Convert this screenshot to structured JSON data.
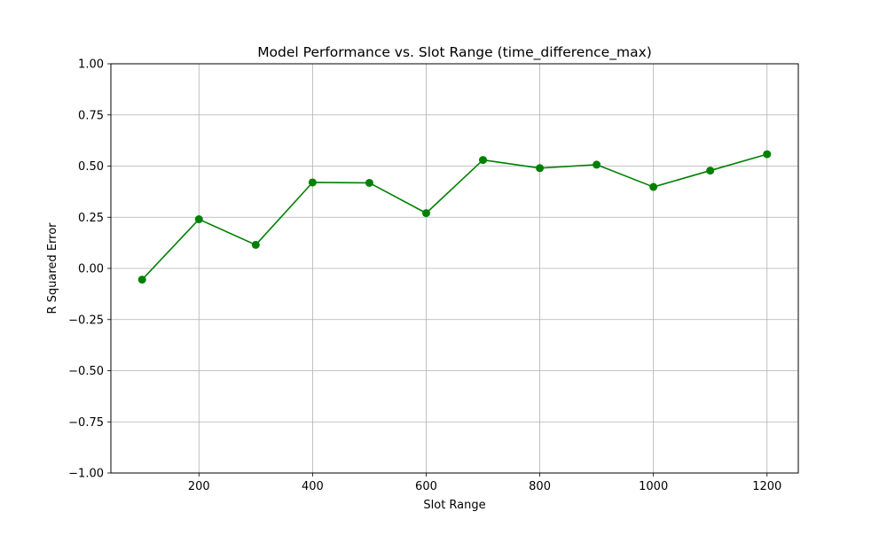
{
  "chart_data": {
    "type": "line",
    "title": "Model Performance vs. Slot Range (time_difference_max)",
    "xlabel": "Slot Range",
    "ylabel": "R Squared Error",
    "xlim": [
      45,
      1255
    ],
    "ylim": [
      -1.0,
      1.0
    ],
    "xticks": [
      200,
      400,
      600,
      800,
      1000,
      1200
    ],
    "xtick_labels": [
      "200",
      "400",
      "600",
      "800",
      "1000",
      "1200"
    ],
    "yticks": [
      -1.0,
      -0.75,
      -0.5,
      -0.25,
      0.0,
      0.25,
      0.5,
      0.75,
      1.0
    ],
    "ytick_labels": [
      "−1.00",
      "−0.75",
      "−0.50",
      "−0.25",
      "0.00",
      "0.25",
      "0.50",
      "0.75",
      "1.00"
    ],
    "grid": true,
    "series": [
      {
        "color": "#008000",
        "marker": "circle",
        "x": [
          100,
          200,
          300,
          400,
          500,
          600,
          700,
          800,
          900,
          1000,
          1100,
          1200
        ],
        "y": [
          -0.055,
          0.24,
          0.115,
          0.42,
          0.418,
          0.27,
          0.53,
          0.49,
          0.507,
          0.398,
          0.478,
          0.558
        ]
      }
    ]
  }
}
